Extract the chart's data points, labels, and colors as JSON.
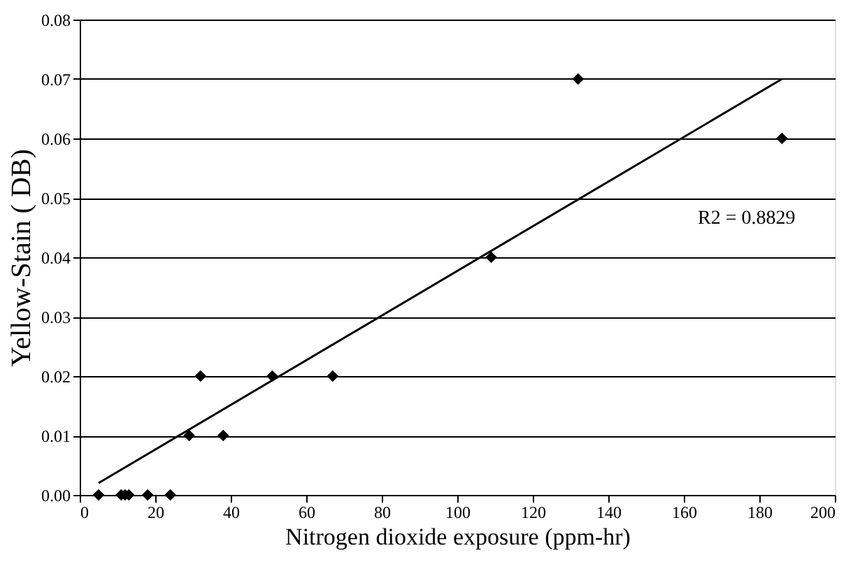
{
  "chart_data": {
    "type": "scatter",
    "xlabel": "Nitrogen dioxide exposure (ppm-hr)",
    "ylabel": "Yellow-Stain ( DB)",
    "xlim": [
      0,
      200
    ],
    "xticks": [
      0,
      20,
      40,
      60,
      80,
      100,
      120,
      140,
      160,
      180,
      200
    ],
    "ylim": [
      0,
      0.08
    ],
    "yticks": [
      {
        "value": 0,
        "label": "0.00"
      },
      0.01,
      0.02,
      0.03,
      0.04,
      0.05,
      0.06,
      0.07,
      0.08
    ],
    "grid": "y",
    "annotations": [
      "R2 = 0.8829"
    ],
    "series": [
      {
        "color": "#000000",
        "marker": "diamond",
        "x": [
          5,
          11,
          12,
          13,
          18,
          24,
          29,
          32,
          38,
          51,
          67,
          109,
          132,
          186
        ],
        "values": [
          0,
          0,
          0,
          0,
          0,
          0,
          0.01,
          0.02,
          0.01,
          0.02,
          0.02,
          0.04,
          0.07,
          0.06
        ]
      },
      {
        "type": "line",
        "color": "#000000",
        "line_style": "solid",
        "marker": "none",
        "x": [
          5,
          186
        ],
        "values": [
          0.002,
          0.07
        ]
      }
    ]
  }
}
